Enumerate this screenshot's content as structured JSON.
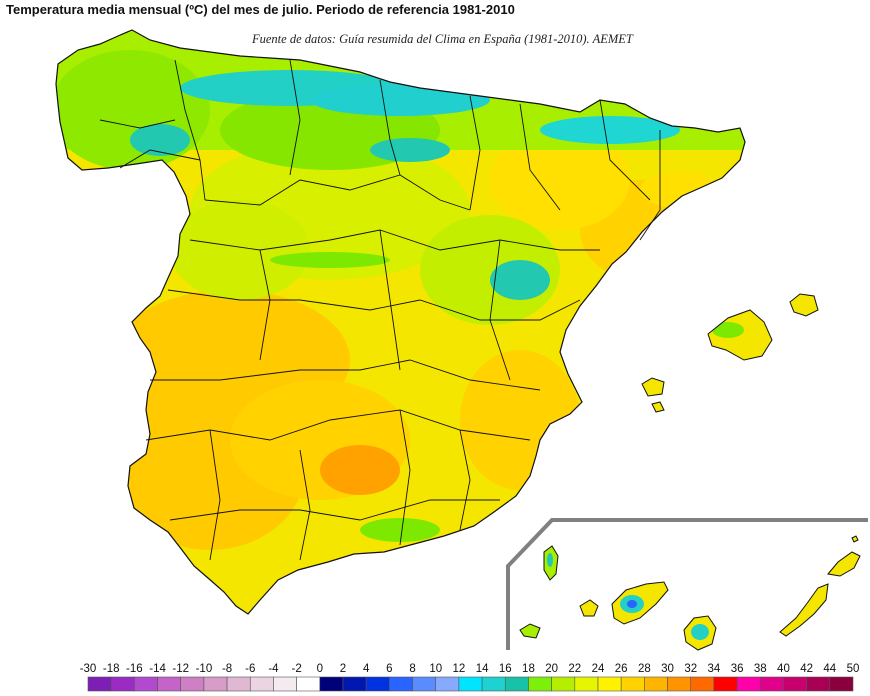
{
  "title": "Temperatura media mensual (ºC) del mes de julio. Periodo de referencia 1981-2010",
  "source": "Fuente de datos: Guía resumida del Clima en España (1981-2010). AEMET",
  "legend": {
    "labels": [
      "-30",
      "-18",
      "-16",
      "-14",
      "-12",
      "-10",
      "-8",
      "-6",
      "-4",
      "-2",
      "0",
      "2",
      "4",
      "6",
      "8",
      "10",
      "12",
      "14",
      "16",
      "18",
      "20",
      "22",
      "24",
      "26",
      "28",
      "30",
      "32",
      "34",
      "36",
      "38",
      "40",
      "42",
      "44",
      "50"
    ],
    "colors": [
      "#7d1fb4",
      "#9a2cc4",
      "#b24ad0",
      "#c463c8",
      "#cf7fc4",
      "#d79cc7",
      "#e0b8d2",
      "#ebd5e2",
      "#f3ebf0",
      "#ffffff",
      "#00007a",
      "#0018b0",
      "#0033e0",
      "#2a64ff",
      "#5b8cff",
      "#87aaff",
      "#00e4ff",
      "#1fd2d2",
      "#18c2a8",
      "#7df00a",
      "#b6ee00",
      "#e6f500",
      "#fff200",
      "#ffd200",
      "#ffb400",
      "#ff9400",
      "#ff6a00",
      "#ff0000",
      "#ff00aa",
      "#e0008c",
      "#c8006e",
      "#a80054",
      "#8a003c"
    ]
  },
  "map": {
    "regions": [
      "peninsula",
      "baleares",
      "canarias"
    ]
  }
}
